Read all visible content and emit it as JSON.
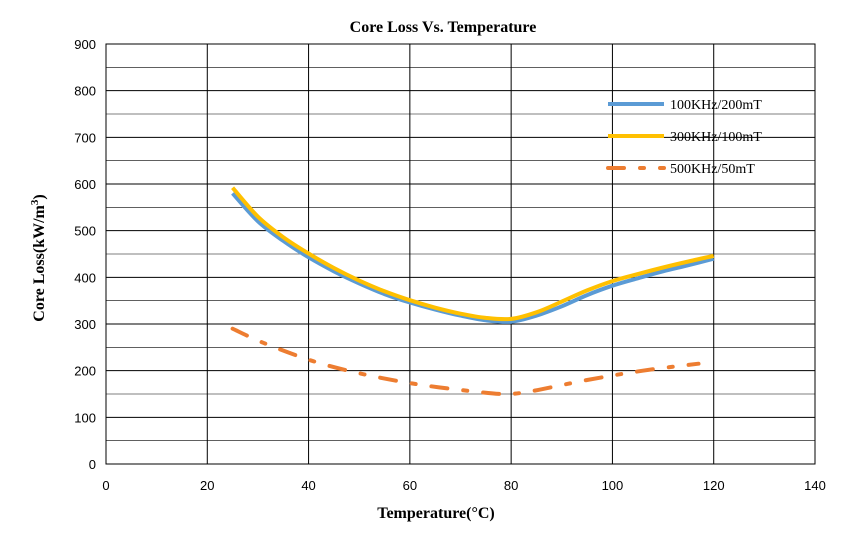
{
  "chart_data": {
    "type": "line",
    "title": "Core Loss Vs. Temperature",
    "xlabel": "Temperature(°C)",
    "ylabel": "Core Loss(kW/m",
    "ylabel_superscript": "3",
    "ylabel_suffix": ")",
    "xlim": [
      0,
      140
    ],
    "ylim": [
      0,
      900
    ],
    "xticks": [
      0,
      20,
      40,
      60,
      80,
      100,
      120,
      140
    ],
    "yticks": [
      0,
      100,
      200,
      300,
      400,
      500,
      600,
      700,
      800,
      900
    ],
    "grid": true,
    "legend_position": "top-right",
    "series": [
      {
        "name": "100KHz/200mT",
        "color": "#5B9BD5",
        "style": "solid",
        "x": [
          25,
          30,
          35,
          40,
          45,
          50,
          55,
          60,
          65,
          70,
          75,
          80,
          85,
          90,
          95,
          100,
          105,
          110,
          115,
          120
        ],
        "y": [
          580,
          520,
          478,
          443,
          413,
          387,
          364,
          346,
          331,
          318,
          308,
          305,
          318,
          338,
          362,
          382,
          398,
          413,
          426,
          440
        ]
      },
      {
        "name": "300KHz/100mT",
        "color": "#FFC000",
        "style": "solid",
        "x": [
          25,
          30,
          35,
          40,
          45,
          50,
          55,
          60,
          65,
          70,
          75,
          80,
          85,
          90,
          95,
          100,
          105,
          110,
          115,
          120
        ],
        "y": [
          592,
          530,
          486,
          451,
          420,
          393,
          370,
          351,
          335,
          322,
          313,
          311,
          325,
          348,
          372,
          392,
          407,
          421,
          434,
          446
        ]
      },
      {
        "name": "500KHz/50mT",
        "color": "#ED7D31",
        "style": "dashdot",
        "x": [
          25,
          31,
          41,
          51,
          62,
          73,
          79,
          84,
          95,
          106,
          117
        ],
        "y": [
          290,
          260,
          220,
          192,
          170,
          155,
          150,
          156,
          180,
          200,
          215
        ]
      }
    ]
  }
}
